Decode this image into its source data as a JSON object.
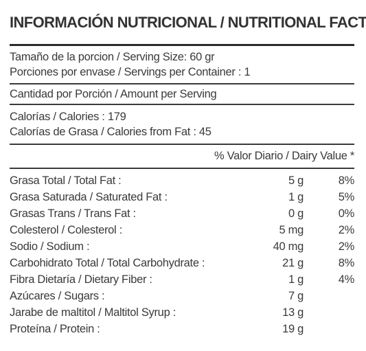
{
  "title": "INFORMACIÓN NUTRICIONAL / NUTRITIONAL FACTS",
  "serving_size": "Tamaño de la porcion / Serving Size: 60 gr",
  "servings_per_container": "Porciones por envase / Servings per Container : 1",
  "amount_per_serving": "Cantidad por Porción / Amount per Serving",
  "calories": "Calorías / Calories : 179",
  "calories_from_fat": "Calorías de Grasa / Calories from Fat : 45",
  "daily_value_header": "% Valor Diario / Dairy Value *",
  "nutrients": [
    {
      "label": "Grasa Total / Total Fat  :",
      "amount": "5 g",
      "dv": "8%"
    },
    {
      "label": "Grasa Saturada / Saturated Fat :",
      "amount": "1 g",
      "dv": "5%"
    },
    {
      "label": "Grasas Trans / Trans Fat :",
      "amount": "0 g",
      "dv": "0%"
    },
    {
      "label": "Colesterol / Colesterol :",
      "amount": "5 mg",
      "dv": "2%"
    },
    {
      "label": "Sodio / Sodium :",
      "amount": "40 mg",
      "dv": "2%"
    },
    {
      "label": "Carbohidrato Total / Total Carbohydrate :",
      "amount": "21 g",
      "dv": "8%"
    },
    {
      "label": "Fibra Dietaría / Dietary Fiber  :",
      "amount": "1 g",
      "dv": "4%"
    },
    {
      "label": "Azúcares / Sugars :",
      "amount": "7 g",
      "dv": ""
    },
    {
      "label": "Jarabe de maltitol / Maltitol Syrup :",
      "amount": "13 g",
      "dv": ""
    },
    {
      "label": "Proteína / Protein :",
      "amount": "19 g",
      "dv": ""
    }
  ]
}
